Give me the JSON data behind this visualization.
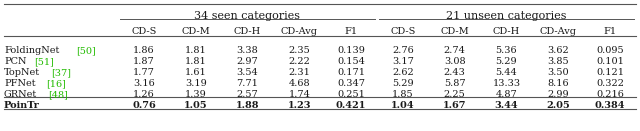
{
  "title_seen": "34 seen categories",
  "title_unseen": "21 unseen categories",
  "col_headers": [
    "CD-S",
    "CD-M",
    "CD-H",
    "CD-Avg",
    "F1",
    "CD-S",
    "CD-M",
    "CD-H",
    "CD-Avg",
    "F1"
  ],
  "row_labels": [
    "FoldingNet ",
    "[50]",
    "PCN ",
    "[51]",
    "TopNet ",
    "[37]",
    "PFNet ",
    "[16]",
    "GRNet ",
    "[48]",
    "PoinTr"
  ],
  "data": [
    [
      "1.86",
      "1.81",
      "3.38",
      "2.35",
      "0.139",
      "2.76",
      "2.74",
      "5.36",
      "3.62",
      "0.095"
    ],
    [
      "1.87",
      "1.81",
      "2.97",
      "2.22",
      "0.154",
      "3.17",
      "3.08",
      "5.29",
      "3.85",
      "0.101"
    ],
    [
      "1.77",
      "1.61",
      "3.54",
      "2.31",
      "0.171",
      "2.62",
      "2.43",
      "5.44",
      "3.50",
      "0.121"
    ],
    [
      "3.16",
      "3.19",
      "7.71",
      "4.68",
      "0.347",
      "5.29",
      "5.87",
      "13.33",
      "8.16",
      "0.322"
    ],
    [
      "1.26",
      "1.39",
      "2.57",
      "1.74",
      "0.251",
      "1.85",
      "2.25",
      "4.87",
      "2.99",
      "0.216"
    ],
    [
      "0.76",
      "1.05",
      "1.88",
      "1.23",
      "0.421",
      "1.04",
      "1.67",
      "3.44",
      "2.05",
      "0.384"
    ]
  ],
  "bg_color": "#ffffff",
  "text_color": "#1a1a1a",
  "green_color": "#22bb00",
  "line_color": "#555555",
  "figsize": [
    6.4,
    1.31
  ],
  "dpi": 100,
  "font_size": 7.0,
  "title_font_size": 8.0
}
